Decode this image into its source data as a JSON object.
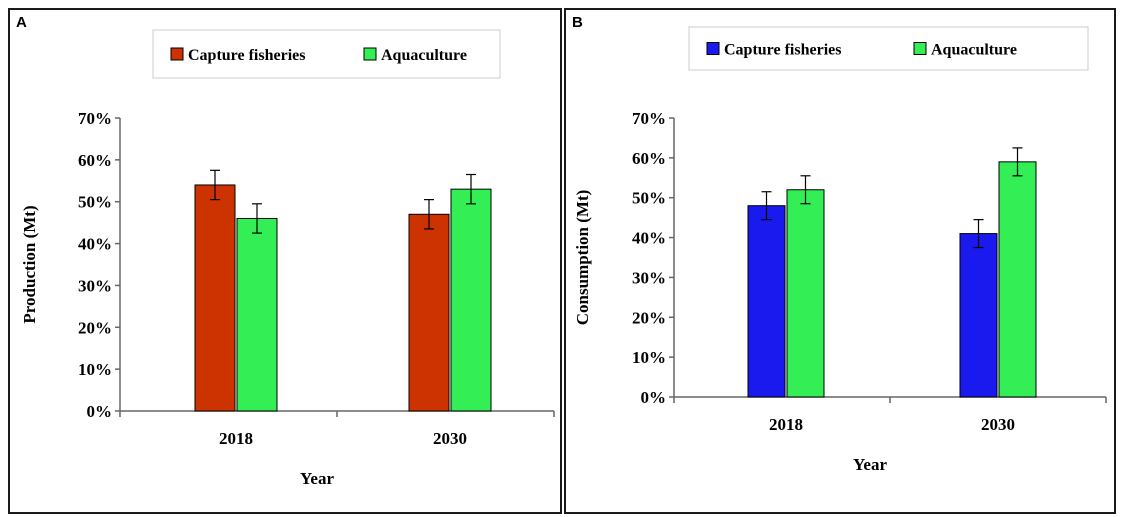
{
  "chart_data": [
    {
      "panel": "A",
      "type": "bar",
      "categories": [
        "2018",
        "2030"
      ],
      "series": [
        {
          "name": "Capture fisheries",
          "values": [
            54,
            47
          ],
          "errors": [
            3.5,
            3.5
          ],
          "color": "#cc3300"
        },
        {
          "name": "Aquaculture",
          "values": [
            46,
            53
          ],
          "errors": [
            3.5,
            3.5
          ],
          "color": "#33ee55"
        }
      ],
      "title": "",
      "xlabel": "Year",
      "ylabel": "Production (Mt)",
      "ylim": [
        0,
        70
      ],
      "yticks": [
        "0%",
        "10%",
        "20%",
        "30%",
        "40%",
        "50%",
        "60%",
        "70%"
      ],
      "grid": false,
      "legend_position": "top"
    },
    {
      "panel": "B",
      "type": "bar",
      "categories": [
        "2018",
        "2030"
      ],
      "series": [
        {
          "name": "Capture fisheries",
          "values": [
            48,
            41
          ],
          "errors": [
            3.5,
            3.5
          ],
          "color": "#1a1aee"
        },
        {
          "name": "Aquaculture",
          "values": [
            52,
            59
          ],
          "errors": [
            3.5,
            3.5
          ],
          "color": "#33ee55"
        }
      ],
      "title": "",
      "xlabel": "Year",
      "ylabel": "Consumption (Mt)",
      "ylim": [
        0,
        70
      ],
      "yticks": [
        "0%",
        "10%",
        "20%",
        "30%",
        "40%",
        "50%",
        "60%",
        "70%"
      ],
      "grid": false,
      "legend_position": "top"
    }
  ]
}
